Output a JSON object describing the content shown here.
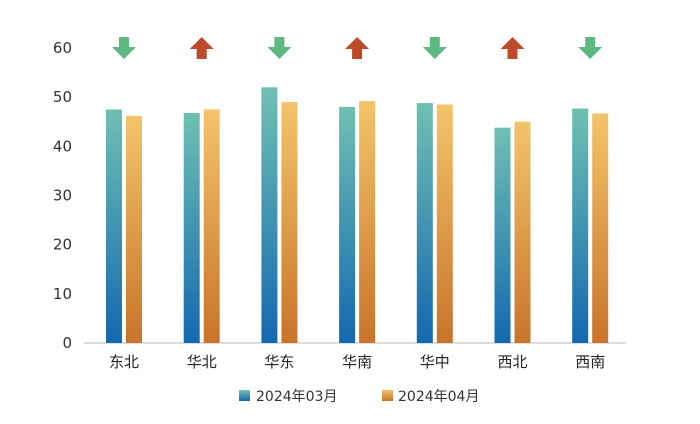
{
  "chart_data": {
    "type": "bar",
    "categories": [
      "东北",
      "华北",
      "华东",
      "华南",
      "华中",
      "西北",
      "西南"
    ],
    "series": [
      {
        "name": "2024年03月",
        "values": [
          47.5,
          46.8,
          52.0,
          48.0,
          48.8,
          43.8,
          47.7
        ]
      },
      {
        "name": "2024年04月",
        "values": [
          46.2,
          47.5,
          49.0,
          49.2,
          48.5,
          45.0,
          46.7
        ]
      }
    ],
    "trend": [
      "down",
      "up",
      "down",
      "up",
      "down",
      "up",
      "down"
    ],
    "ylim": [
      0,
      60
    ],
    "yticks": [
      0,
      10,
      20,
      30,
      40,
      50,
      60
    ],
    "grid": false,
    "legend": "bottom",
    "colors": {
      "series1_top": "#6FC0B2",
      "series1_bottom": "#1468B0",
      "series2_top": "#F3C469",
      "series2_bottom": "#C8742A",
      "up": "#BC4A2B",
      "down": "#5DB882",
      "axis": "#BBBBBB"
    }
  }
}
